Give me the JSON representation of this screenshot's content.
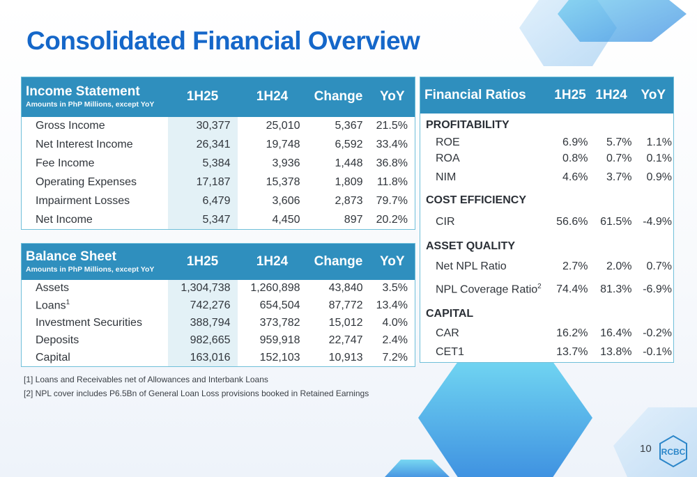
{
  "page": {
    "title": "Consolidated Financial Overview",
    "page_number": "10",
    "logo_text": "RCBC"
  },
  "income_statement": {
    "title": "Income Statement",
    "subtitle": "Amounts in PhP Millions, except YoY",
    "columns": [
      "1H25",
      "1H24",
      "Change",
      "YoY"
    ],
    "rows": [
      {
        "label": "Gross Income",
        "values": [
          "30,377",
          "25,010",
          "5,367",
          "21.5%"
        ]
      },
      {
        "label": "Net Interest Income",
        "values": [
          "26,341",
          "19,748",
          "6,592",
          "33.4%"
        ]
      },
      {
        "label": "Fee Income",
        "values": [
          "5,384",
          "3,936",
          "1,448",
          "36.8%"
        ]
      },
      {
        "label": "Operating Expenses",
        "values": [
          "17,187",
          "15,378",
          "1,809",
          "11.8%"
        ]
      },
      {
        "label": "Impairment Losses",
        "values": [
          "6,479",
          "3,606",
          "2,873",
          "79.7%"
        ]
      },
      {
        "label": "Net Income",
        "values": [
          "5,347",
          "4,450",
          "897",
          "20.2%"
        ]
      }
    ]
  },
  "balance_sheet": {
    "title": "Balance Sheet",
    "subtitle": "Amounts in PhP Millions, except YoY",
    "columns": [
      "1H25",
      "1H24",
      "Change",
      "YoY"
    ],
    "rows": [
      {
        "label": "Assets",
        "values": [
          "1,304,738",
          "1,260,898",
          "43,840",
          "3.5%"
        ]
      },
      {
        "label": "Loans",
        "sup": "1",
        "values": [
          "742,276",
          "654,504",
          "87,772",
          "13.4%"
        ]
      },
      {
        "label": "Investment Securities",
        "values": [
          "388,794",
          "373,782",
          "15,012",
          "4.0%"
        ]
      },
      {
        "label": "Deposits",
        "values": [
          "982,665",
          "959,918",
          "22,747",
          "2.4%"
        ]
      },
      {
        "label": "Capital",
        "values": [
          "163,016",
          "152,103",
          "10,913",
          "7.2%"
        ]
      }
    ]
  },
  "financial_ratios": {
    "title": "Financial Ratios",
    "columns": [
      "1H25",
      "1H24",
      "YoY"
    ],
    "sections": [
      {
        "name": "PROFITABILITY",
        "rows": [
          {
            "label": "ROE",
            "values": [
              "6.9%",
              "5.7%",
              "1.1%"
            ]
          },
          {
            "label": "ROA",
            "values": [
              "0.8%",
              "0.7%",
              "0.1%"
            ]
          },
          {
            "label": "NIM",
            "values": [
              "4.6%",
              "3.7%",
              "0.9%"
            ]
          }
        ]
      },
      {
        "name": "COST EFFICIENCY",
        "rows": [
          {
            "label": "CIR",
            "values": [
              "56.6%",
              "61.5%",
              "-4.9%"
            ]
          }
        ]
      },
      {
        "name": "ASSET QUALITY",
        "rows": [
          {
            "label": "Net NPL Ratio",
            "values": [
              "2.7%",
              "2.0%",
              "0.7%"
            ]
          },
          {
            "label": "NPL Coverage Ratio",
            "sup": "2",
            "values": [
              "74.4%",
              "81.3%",
              "-6.9%"
            ]
          }
        ]
      },
      {
        "name": "CAPITAL",
        "rows": [
          {
            "label": "CAR",
            "values": [
              "16.2%",
              "16.4%",
              "-0.2%"
            ]
          },
          {
            "label": "CET1",
            "values": [
              "13.7%",
              "13.8%",
              "-0.1%"
            ]
          }
        ]
      }
    ]
  },
  "footnotes": [
    "[1] Loans and Receivables net of Allowances and Interbank Loans",
    "[2] NPL cover includes P6.5Bn of General Loan Loss provisions booked in Retained Earnings"
  ],
  "colors": {
    "title": "#1567c9",
    "header": "#2f8fbe",
    "border": "#6fbfd9",
    "shade": "#e3f1f6"
  }
}
